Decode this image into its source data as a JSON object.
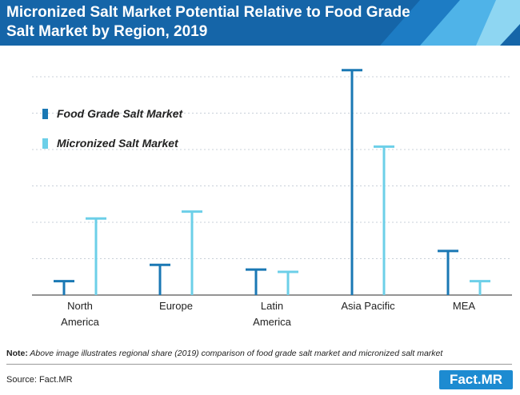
{
  "header": {
    "title": "Micronized Salt Market Potential Relative to Food Grade Salt Market by Region, 2019"
  },
  "colors": {
    "header_bg": "#1565a8",
    "food_grade": "#1a78b4",
    "micronized": "#6ccfe8"
  },
  "chart_data": {
    "type": "bar",
    "title": "Micronized Salt Market Potential Relative to Food Grade Salt Market by Region, 2019",
    "categories": [
      "North America",
      "Europe",
      "Latin America",
      "Asia Pacific",
      "MEA"
    ],
    "series": [
      {
        "name": "Food Grade Salt Market",
        "values": [
          6,
          13,
          11,
          97,
          19
        ]
      },
      {
        "name": "Micronized Salt Market",
        "values": [
          33,
          36,
          10,
          64,
          6
        ]
      }
    ],
    "ylim": [
      0,
      100
    ],
    "y_axis_labels": "none",
    "grid": true,
    "legend_placement": "top-left",
    "style": "lollipop (vertical line with horizontal cap)"
  },
  "footer": {
    "note_label": "Note:",
    "note_text": "Above image illustrates regional share (2019) comparison of food grade salt market and micronized salt market",
    "source": "Source: Fact.MR",
    "logo": "Fact.MR"
  }
}
